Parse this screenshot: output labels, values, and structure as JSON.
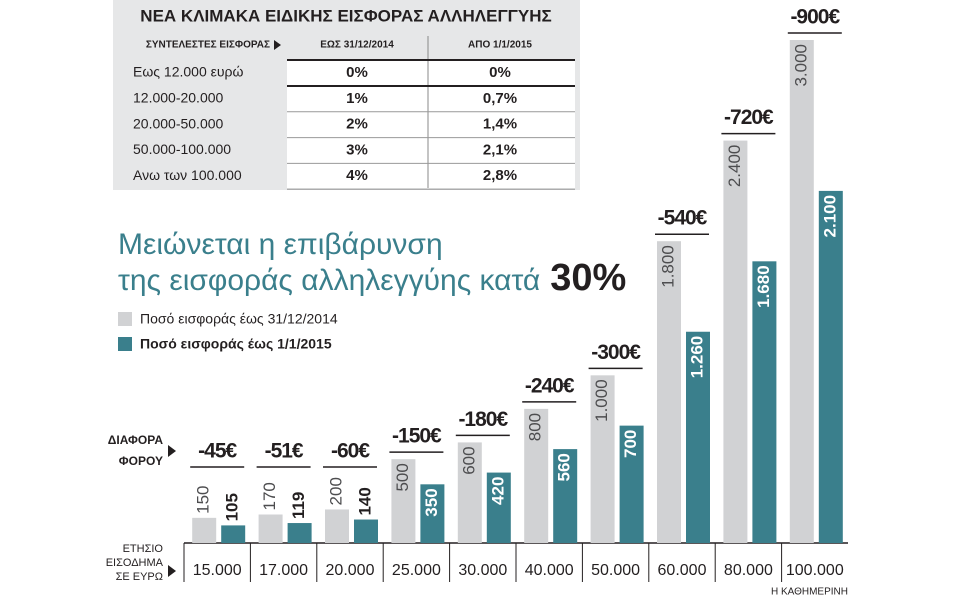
{
  "table": {
    "title": "ΝΕΑ ΚΛΙΜΑΚΑ ΕΙΔΙΚΗΣ ΕΙΣΦΟΡΑΣ ΑΛΛΗΛΕΓΓΥΗΣ",
    "header": [
      "ΣΥΝΤΕΛΕΣΤΕΣ ΕΙΣΦΟΡΑΣ",
      "ΕΩΣ 31/12/2014",
      "ΑΠΟ 1/1/2015"
    ],
    "rows": [
      [
        "Εως 12.000 ευρώ",
        "0%",
        "0%"
      ],
      [
        "12.000-20.000",
        "1%",
        "0,7%"
      ],
      [
        "20.000-50.000",
        "2%",
        "1,4%"
      ],
      [
        "50.000-100.000",
        "3%",
        "2,1%"
      ],
      [
        "Ανω των 100.000",
        "4%",
        "2,8%"
      ]
    ]
  },
  "chart_data": {
    "type": "bar",
    "title": [
      "Μειώνεται η επιβάρυνση",
      "της εισφοράς αλληλεγγύης κατά"
    ],
    "title_highlight": "30%",
    "categories": [
      "15.000",
      "17.000",
      "20.000",
      "25.000",
      "30.000",
      "40.000",
      "50.000",
      "60.000",
      "80.000",
      "100.000"
    ],
    "x_label": [
      "ΕΤΗΣΙΟ",
      "ΕΙΣΟΔΗΜΑ",
      "ΣΕ ΕΥΡΩ"
    ],
    "series": [
      {
        "name": "Ποσό εισφοράς έως 31/12/2014",
        "color": "#d1d2d4",
        "values": [
          150,
          170,
          200,
          500,
          600,
          800,
          1000,
          1800,
          2400,
          3000
        ],
        "value_labels": [
          "150",
          "170",
          "200",
          "500",
          "600",
          "800",
          "1.000",
          "1.800",
          "2.400",
          "3.000"
        ]
      },
      {
        "name": "Ποσό εισφοράς έως 1/1/2015",
        "color": "#3a7f8c",
        "values": [
          105,
          119,
          140,
          350,
          420,
          560,
          700,
          1260,
          1680,
          2100
        ],
        "value_labels": [
          "105",
          "119",
          "140",
          "350",
          "420",
          "560",
          "700",
          "1.260",
          "1.680",
          "2.100"
        ]
      }
    ],
    "difference_title": [
      "ΔΙΑΦΟΡΑ",
      "ΦΟΡΟΥ"
    ],
    "difference_labels": [
      "-45€",
      "-51€",
      "-60€",
      "-150€",
      "-180€",
      "-240€",
      "-300€",
      "-540€",
      "-720€",
      "-900€"
    ],
    "ylim": [
      0,
      3000
    ],
    "source": "Η ΚΑΘΗΜΕΡΙΝΗ"
  }
}
